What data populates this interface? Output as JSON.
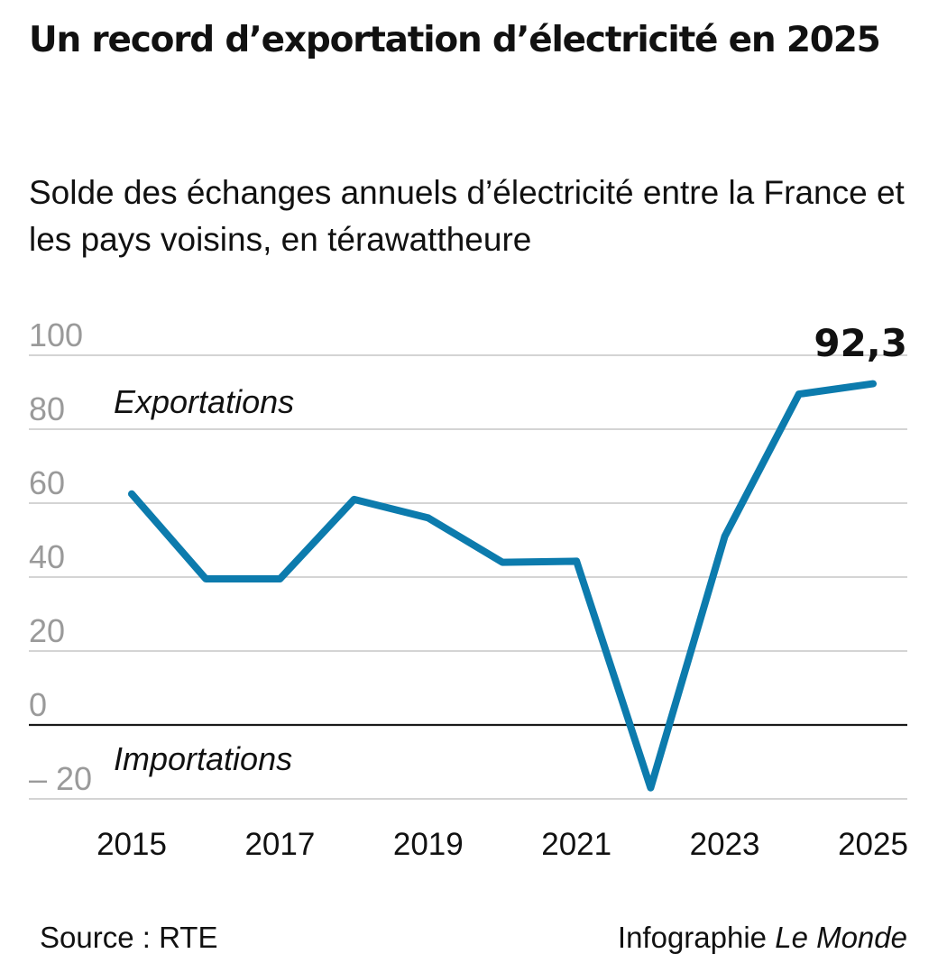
{
  "title": "Un record d’exportation d’électricité en 2025",
  "subtitle": {
    "main": "Solde des échanges annuels d’électricité entre la France et les pays voisins",
    "unit": ", en térawattheure"
  },
  "chart_data": {
    "type": "line",
    "x": [
      2015,
      2016,
      2017,
      2018,
      2019,
      2020,
      2021,
      2022,
      2023,
      2024,
      2025
    ],
    "series": [
      {
        "values": [
          62.5,
          39.5,
          39.5,
          61,
          56,
          44,
          44.3,
          -17,
          51,
          89.5,
          92.3
        ],
        "color": "#0c7bad"
      }
    ],
    "y_ticks": [
      100,
      80,
      60,
      40,
      20,
      0,
      -20
    ],
    "y_tick_labels": [
      "100",
      "80",
      "60",
      "40",
      "20",
      "0",
      "– 20"
    ],
    "x_tick_labels": [
      "2015",
      "2017",
      "2019",
      "2021",
      "2023",
      "2025"
    ],
    "x_ticks": [
      2015,
      2017,
      2019,
      2021,
      2023,
      2025
    ],
    "ylim": [
      -20,
      100
    ],
    "grid": true,
    "annotations": {
      "exports_label": "Exportations",
      "imports_label": "Importations",
      "last_value_label": "92,3"
    },
    "colors": {
      "line": "#0c7bad",
      "grid": "#c6c6c6",
      "zero_line": "#1a1a1a",
      "tick_text": "#9a9a9a"
    }
  },
  "footer": {
    "source": "Source : RTE",
    "credit_prefix": "Infographie ",
    "credit_brand": "Le Monde"
  }
}
